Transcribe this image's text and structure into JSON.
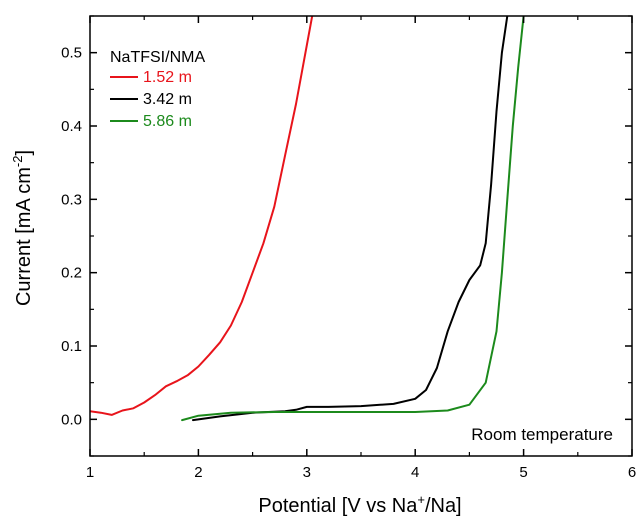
{
  "chart_data": {
    "type": "line",
    "xlabel_text": "Potential [V vs Na",
    "xlabel_sup": "+",
    "xlabel_tail": "/Na]",
    "ylabel_text": "Current [mA cm",
    "ylabel_sup": "-2",
    "ylabel_tail": "]",
    "xlim": [
      1,
      6
    ],
    "ylim": [
      -0.05,
      0.55
    ],
    "xticks": [
      "1",
      "2",
      "3",
      "4",
      "5",
      "6"
    ],
    "yticks": [
      "0.0",
      "0.1",
      "0.2",
      "0.3",
      "0.4",
      "0.5"
    ],
    "xtick_values": [
      1,
      2,
      3,
      4,
      5,
      6
    ],
    "ytick_values": [
      0.0,
      0.1,
      0.2,
      0.3,
      0.4,
      0.5
    ],
    "legend_title": "NaTFSI/NMA",
    "legend_position": "top-left",
    "annotation": "Room temperature",
    "grid": false,
    "series": [
      {
        "name": "1.52 m",
        "color": "#e8141b",
        "x": [
          1.0,
          1.1,
          1.2,
          1.3,
          1.4,
          1.5,
          1.6,
          1.7,
          1.8,
          1.9,
          2.0,
          2.1,
          2.2,
          2.3,
          2.4,
          2.5,
          2.6,
          2.7,
          2.8,
          2.9,
          3.0,
          3.05
        ],
        "y": [
          0.011,
          0.009,
          0.006,
          0.012,
          0.015,
          0.023,
          0.033,
          0.045,
          0.052,
          0.06,
          0.072,
          0.088,
          0.105,
          0.128,
          0.16,
          0.2,
          0.24,
          0.29,
          0.36,
          0.43,
          0.51,
          0.55
        ]
      },
      {
        "name": "3.42 m",
        "color": "#000000",
        "x": [
          1.95,
          2.2,
          2.5,
          2.8,
          2.9,
          3.0,
          3.2,
          3.5,
          3.8,
          4.0,
          4.1,
          4.2,
          4.3,
          4.4,
          4.5,
          4.6,
          4.65,
          4.7,
          4.75,
          4.8,
          4.85
        ],
        "y": [
          -0.001,
          0.004,
          0.009,
          0.011,
          0.013,
          0.017,
          0.017,
          0.018,
          0.021,
          0.028,
          0.04,
          0.07,
          0.12,
          0.16,
          0.19,
          0.21,
          0.24,
          0.32,
          0.42,
          0.5,
          0.55
        ]
      },
      {
        "name": "5.86 m",
        "color": "#1c8a1c",
        "x": [
          1.85,
          2.0,
          2.3,
          2.7,
          3.0,
          3.5,
          4.0,
          4.3,
          4.5,
          4.65,
          4.75,
          4.8,
          4.85,
          4.9,
          4.95,
          5.0
        ],
        "y": [
          -0.001,
          0.005,
          0.009,
          0.01,
          0.01,
          0.01,
          0.01,
          0.012,
          0.02,
          0.05,
          0.12,
          0.2,
          0.3,
          0.4,
          0.48,
          0.55
        ]
      }
    ]
  }
}
